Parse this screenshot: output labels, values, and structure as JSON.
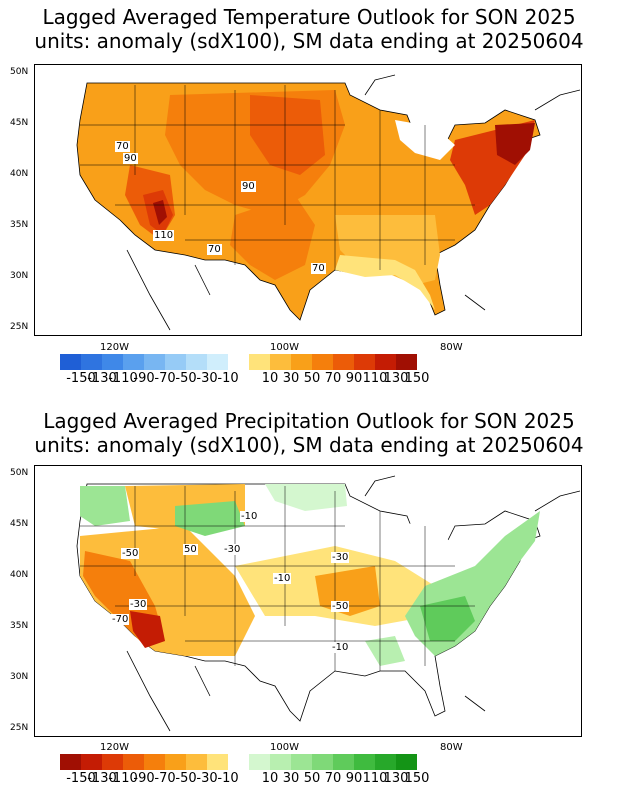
{
  "top_panel": {
    "title_line1": "Lagged Averaged Temperature Outlook for SON 2025",
    "title_line2": "units: anomaly (sdX100), SM data ending at 20250604",
    "lat_labels": [
      "50N",
      "45N",
      "40N",
      "35N",
      "30N",
      "25N"
    ],
    "lon_labels": [
      "120W",
      "100W",
      "80W"
    ],
    "contour_labels": [
      "70",
      "90",
      "90",
      "110",
      "70",
      "70"
    ],
    "colorbar_labels": [
      "-150",
      "-130",
      "-110",
      "-90",
      "-70",
      "-50",
      "-30",
      "-10",
      "10",
      "30",
      "50",
      "70",
      "90",
      "110",
      "130",
      "150"
    ],
    "colorbar_colors_neg": [
      "#1f5fd6",
      "#2f74e0",
      "#3f88e8",
      "#5aa0ee",
      "#78b6f2",
      "#96cbf6",
      "#b4def9",
      "#d0eefc"
    ],
    "colorbar_colors_pos": [
      "#ffe37a",
      "#fdbd3c",
      "#f9a019",
      "#f57f0c",
      "#ec5c08",
      "#dd3a06",
      "#c41c04",
      "#a00f03"
    ]
  },
  "bottom_panel": {
    "title_line1": "Lagged Averaged Precipitation Outlook for SON 2025",
    "title_line2": "units: anomaly (sdX100), SM data ending at 20250604",
    "lat_labels": [
      "50N",
      "45N",
      "40N",
      "35N",
      "30N",
      "25N"
    ],
    "lon_labels": [
      "120W",
      "100W",
      "80W"
    ],
    "contour_labels": [
      "-10",
      "-50",
      "50",
      "-30",
      "-30",
      "-10",
      "-50",
      "-30",
      "-70",
      "-10"
    ],
    "colorbar_labels": [
      "-150",
      "-130",
      "-110",
      "-90",
      "-70",
      "-50",
      "-30",
      "-10",
      "10",
      "30",
      "50",
      "70",
      "90",
      "110",
      "130",
      "150"
    ],
    "colorbar_colors_neg": [
      "#a00f03",
      "#c41c04",
      "#dd3a06",
      "#ec5c08",
      "#f57f0c",
      "#f9a019",
      "#fdbd3c",
      "#ffe37a"
    ],
    "colorbar_colors_pos": [
      "#d4f7cf",
      "#b8efb0",
      "#9ce594",
      "#7fd978",
      "#5fcb5b",
      "#3fbb3f",
      "#27a82a",
      "#149416"
    ]
  }
}
